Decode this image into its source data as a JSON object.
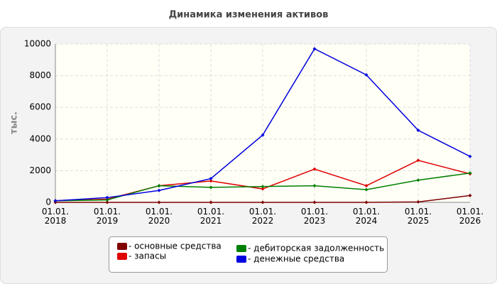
{
  "chart_data": {
    "type": "line",
    "title": "Динамика изменения активов",
    "y_label": "тыс.",
    "categories": [
      "01.01.\n2018",
      "01.01.\n2019",
      "01.01.\n2020",
      "01.01.\n2021",
      "01.01.\n2022",
      "01.01.\n2023",
      "01.01.\n2024",
      "01.01.\n2025",
      "01.01.\n2026"
    ],
    "series": [
      {
        "name": "- основные средства",
        "color": "#800000",
        "values": [
          0,
          0,
          0,
          0,
          0,
          0,
          0,
          30,
          430
        ]
      },
      {
        "name": "- запасы",
        "color": "#e00000",
        "values": [
          100,
          200,
          1050,
          1350,
          850,
          2100,
          1050,
          2650,
          1800
        ]
      },
      {
        "name": "- дебиторская задолженность",
        "color": "#008000",
        "values": [
          100,
          150,
          1050,
          950,
          1000,
          1050,
          800,
          1400,
          1850
        ]
      },
      {
        "name": "- денежные средства",
        "color": "#0000e0",
        "values": [
          100,
          300,
          750,
          1500,
          4250,
          9700,
          8050,
          4550,
          2900
        ]
      }
    ],
    "ylim": [
      0,
      10000
    ],
    "yticks": [
      0,
      2000,
      4000,
      6000,
      8000,
      10000
    ],
    "grid": true
  }
}
